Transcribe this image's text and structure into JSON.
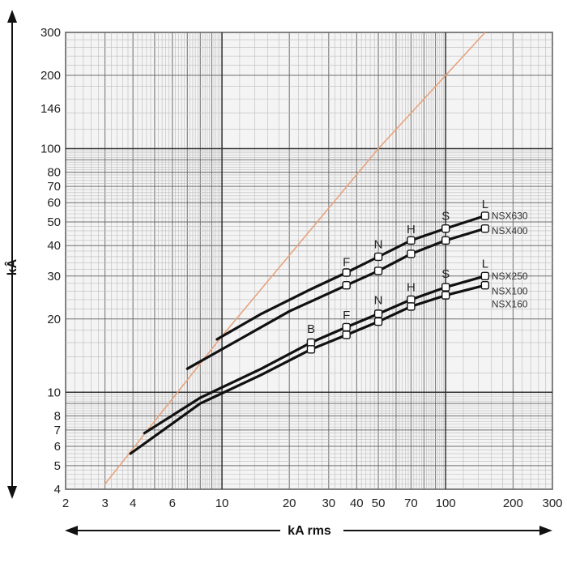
{
  "chart_data": {
    "type": "line",
    "log_x": true,
    "log_y": true,
    "xlabel": "kA rms",
    "ylabel": "kÂ",
    "xlim": [
      2,
      300
    ],
    "ylim": [
      4,
      300
    ],
    "grid": true,
    "x_ticks": [
      {
        "value": 2,
        "label": "2"
      },
      {
        "value": 3,
        "label": "3"
      },
      {
        "value": 4,
        "label": "4"
      },
      {
        "value": 6,
        "label": "6"
      },
      {
        "value": 10,
        "label": "10"
      },
      {
        "value": 20,
        "label": "20"
      },
      {
        "value": 30,
        "label": "30"
      },
      {
        "value": 40,
        "label": "40"
      },
      {
        "value": 50,
        "label": "50"
      },
      {
        "value": 70,
        "label": "70"
      },
      {
        "value": 100,
        "label": "100"
      },
      {
        "value": 200,
        "label": "200"
      },
      {
        "value": 300,
        "label": "300"
      }
    ],
    "y_ticks": [
      {
        "value": 4,
        "label": "4"
      },
      {
        "value": 5,
        "label": "5"
      },
      {
        "value": 6,
        "label": "6"
      },
      {
        "value": 7,
        "label": "7"
      },
      {
        "value": 8,
        "label": "8"
      },
      {
        "value": 10,
        "label": "10"
      },
      {
        "value": 20,
        "label": "20"
      },
      {
        "value": 30,
        "label": "30"
      },
      {
        "value": 40,
        "label": "40"
      },
      {
        "value": 50,
        "label": "50"
      },
      {
        "value": 60,
        "label": "60"
      },
      {
        "value": 70,
        "label": "70"
      },
      {
        "value": 80,
        "label": "80"
      },
      {
        "value": 100,
        "label": "100"
      },
      {
        "value": 146,
        "label": "146"
      },
      {
        "value": 200,
        "label": "200"
      },
      {
        "value": 300,
        "label": "300"
      }
    ],
    "reference_line": {
      "color": "#e8a37c",
      "points": [
        [
          3,
          4.2
        ],
        [
          10,
          17
        ],
        [
          50,
          100
        ],
        [
          150,
          300
        ]
      ]
    },
    "series": [
      {
        "name": "NSX630",
        "color": "#111111",
        "points": [
          [
            9.5,
            16.5
          ],
          [
            15,
            21
          ],
          [
            25,
            26.5
          ],
          [
            36,
            31
          ],
          [
            50,
            36
          ],
          [
            70,
            42
          ],
          [
            100,
            47
          ],
          [
            150,
            53
          ]
        ],
        "markers": [
          [
            36,
            31
          ],
          [
            50,
            36
          ],
          [
            70,
            42
          ],
          [
            100,
            47
          ],
          [
            150,
            53
          ]
        ]
      },
      {
        "name": "NSX400",
        "color": "#111111",
        "points": [
          [
            7,
            12.5
          ],
          [
            12,
            16.5
          ],
          [
            20,
            21.5
          ],
          [
            36,
            27.5
          ],
          [
            50,
            31.5
          ],
          [
            70,
            37
          ],
          [
            100,
            42
          ],
          [
            150,
            47
          ]
        ],
        "markers": [
          [
            36,
            27.5
          ],
          [
            50,
            31.5
          ],
          [
            70,
            37
          ],
          [
            100,
            42
          ],
          [
            150,
            47
          ]
        ]
      },
      {
        "name": "NSX250",
        "color": "#111111",
        "points": [
          [
            4.5,
            6.8
          ],
          [
            8,
            9.5
          ],
          [
            15,
            12.5
          ],
          [
            25,
            16
          ],
          [
            36,
            18.5
          ],
          [
            50,
            21
          ],
          [
            70,
            24
          ],
          [
            100,
            27
          ],
          [
            150,
            30
          ]
        ],
        "markers": [
          [
            25,
            16
          ],
          [
            36,
            18.5
          ],
          [
            50,
            21
          ],
          [
            70,
            24
          ],
          [
            100,
            27
          ],
          [
            150,
            30
          ]
        ]
      },
      {
        "name": "NSX100",
        "color": "#111111",
        "points": [
          [
            3.9,
            5.6
          ],
          [
            8,
            9
          ],
          [
            15,
            11.8
          ],
          [
            25,
            15
          ],
          [
            36,
            17.2
          ],
          [
            50,
            19.5
          ],
          [
            70,
            22.5
          ],
          [
            100,
            25
          ],
          [
            150,
            27.5
          ]
        ],
        "markers": [
          [
            25,
            15
          ],
          [
            36,
            17.2
          ],
          [
            50,
            19.5
          ],
          [
            70,
            22.5
          ],
          [
            100,
            25
          ],
          [
            150,
            27.5
          ]
        ]
      }
    ],
    "series_labels": [
      {
        "text": "NSX630",
        "x": 150,
        "y": 53
      },
      {
        "text": "NSX400",
        "x": 150,
        "y": 46
      },
      {
        "text": "NSX250",
        "x": 150,
        "y": 30
      },
      {
        "text": "NSX100",
        "x": 150,
        "y": 26
      },
      {
        "text": "NSX160",
        "x": 150,
        "y": 23
      }
    ],
    "point_letters": [
      {
        "text": "F",
        "x": 36,
        "y": 33
      },
      {
        "text": "N",
        "x": 50,
        "y": 39
      },
      {
        "text": "H",
        "x": 70,
        "y": 45
      },
      {
        "text": "S",
        "x": 100,
        "y": 51
      },
      {
        "text": "L",
        "x": 150,
        "y": 57
      },
      {
        "text": "B",
        "x": 25,
        "y": 17.5
      },
      {
        "text": "F",
        "x": 36,
        "y": 20
      },
      {
        "text": "N",
        "x": 50,
        "y": 23
      },
      {
        "text": "H",
        "x": 70,
        "y": 26
      },
      {
        "text": "S",
        "x": 100,
        "y": 29.5
      },
      {
        "text": "L",
        "x": 150,
        "y": 32.5
      }
    ]
  }
}
